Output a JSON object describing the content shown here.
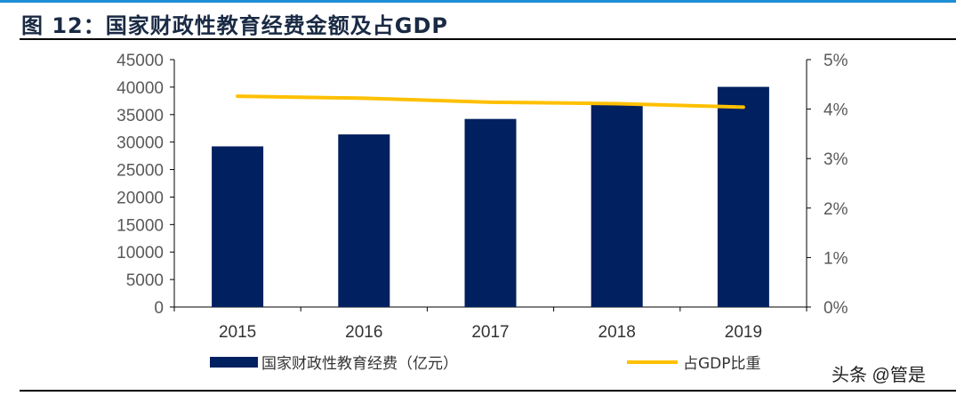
{
  "title": "图 12：国家财政性教育经费金额及占GDP",
  "watermark": "头条 @管是",
  "chart_data": {
    "type": "bar+line",
    "title": "图 12：国家财政性教育经费金额及占GDP",
    "categories": [
      "2015",
      "2016",
      "2017",
      "2018",
      "2019"
    ],
    "series": [
      {
        "name": "国家财政性教育经费（亿元）",
        "type": "bar",
        "axis": "left",
        "color": "#002060",
        "values": [
          29221,
          31396,
          34208,
          36996,
          40047
        ]
      },
      {
        "name": "占GDP比重",
        "type": "line",
        "axis": "right",
        "color": "#FFC000",
        "values": [
          4.26,
          4.22,
          4.14,
          4.11,
          4.04
        ]
      }
    ],
    "left_axis": {
      "ylim": [
        0,
        45000
      ],
      "ticks": [
        "0",
        "5000",
        "10000",
        "15000",
        "20000",
        "25000",
        "30000",
        "35000",
        "40000",
        "45000"
      ]
    },
    "right_axis": {
      "ylim": [
        0,
        5
      ],
      "ticks": [
        "0%",
        "1%",
        "2%",
        "3%",
        "4%",
        "5%"
      ]
    },
    "grid": false,
    "legend": "bottom"
  }
}
